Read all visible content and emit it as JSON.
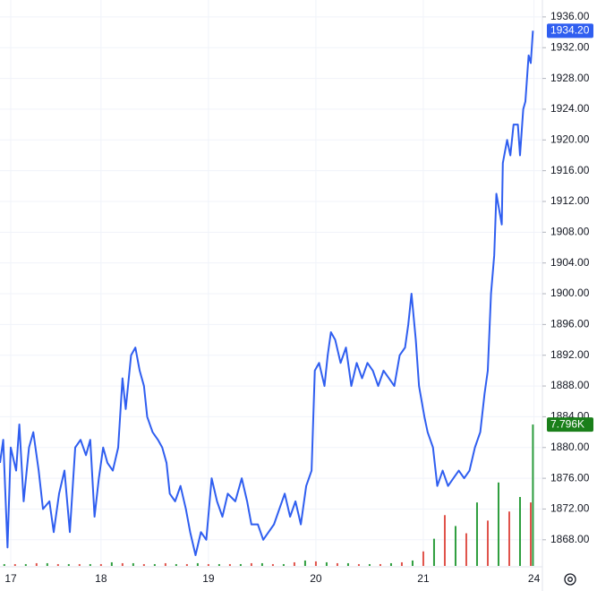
{
  "chart_data": {
    "type": "line",
    "xlim": [
      0.06,
      5.1
    ],
    "xticks": [
      {
        "value": 0.16,
        "label": "17"
      },
      {
        "value": 1,
        "label": "18"
      },
      {
        "value": 2,
        "label": "19"
      },
      {
        "value": 3,
        "label": "20"
      },
      {
        "value": 4,
        "label": "21"
      },
      {
        "value": 5.03,
        "label": "24"
      }
    ],
    "ylim": [
      1864.6,
      1938.2
    ],
    "yticks": [
      {
        "value": 1868,
        "label": "1868.00"
      },
      {
        "value": 1872,
        "label": "1872.00"
      },
      {
        "value": 1876,
        "label": "1876.00"
      },
      {
        "value": 1880,
        "label": "1880.00"
      },
      {
        "value": 1884,
        "label": "1884.00"
      },
      {
        "value": 1888,
        "label": "1888.00"
      },
      {
        "value": 1892,
        "label": "1892.00"
      },
      {
        "value": 1896,
        "label": "1896.00"
      },
      {
        "value": 1900,
        "label": "1900.00"
      },
      {
        "value": 1904,
        "label": "1904.00"
      },
      {
        "value": 1908,
        "label": "1908.00"
      },
      {
        "value": 1912,
        "label": "1912.00"
      },
      {
        "value": 1916,
        "label": "1916.00"
      },
      {
        "value": 1920,
        "label": "1920.00"
      },
      {
        "value": 1924,
        "label": "1924.00"
      },
      {
        "value": 1928,
        "label": "1928.00"
      },
      {
        "value": 1932,
        "label": "1932.00"
      },
      {
        "value": 1936,
        "label": "1936.00"
      }
    ],
    "y2lim": [
      0,
      31.2
    ],
    "grid": true,
    "series": [
      {
        "type": "line",
        "color": "#2f5ef0",
        "x": [
          0.06,
          0.09,
          0.13,
          0.16,
          0.21,
          0.24,
          0.28,
          0.33,
          0.37,
          0.42,
          0.46,
          0.52,
          0.56,
          0.61,
          0.66,
          0.71,
          0.76,
          0.81,
          0.86,
          0.9,
          0.94,
          0.98,
          1.02,
          1.06,
          1.11,
          1.16,
          1.2,
          1.23,
          1.28,
          1.32,
          1.36,
          1.4,
          1.43,
          1.48,
          1.53,
          1.57,
          1.61,
          1.64,
          1.69,
          1.74,
          1.79,
          1.83,
          1.88,
          1.93,
          1.98,
          2.03,
          2.08,
          2.13,
          2.18,
          2.25,
          2.31,
          2.36,
          2.4,
          2.46,
          2.51,
          2.56,
          2.61,
          2.66,
          2.71,
          2.76,
          2.81,
          2.86,
          2.91,
          2.96,
          2.99,
          3.03,
          3.08,
          3.11,
          3.14,
          3.18,
          3.23,
          3.28,
          3.33,
          3.38,
          3.43,
          3.48,
          3.53,
          3.58,
          3.63,
          3.68,
          3.73,
          3.78,
          3.83,
          3.86,
          3.89,
          3.93,
          3.96,
          4.01,
          4.04,
          4.09,
          4.13,
          4.18,
          4.23,
          4.28,
          4.33,
          4.38,
          4.43,
          4.48,
          4.53,
          4.57,
          4.6,
          4.63,
          4.66,
          4.68,
          4.73,
          4.74,
          4.78,
          4.81,
          4.84,
          4.88,
          4.9,
          4.93,
          4.95,
          4.98,
          5,
          5.02
        ],
        "values": [
          1878,
          1881,
          1867,
          1880,
          1877,
          1883,
          1873,
          1880,
          1882,
          1877,
          1872,
          1873,
          1869,
          1874,
          1877,
          1869,
          1880,
          1881,
          1879,
          1881,
          1871,
          1876,
          1880,
          1878,
          1877,
          1880,
          1889,
          1885,
          1892,
          1893,
          1890,
          1888,
          1884,
          1882,
          1881,
          1880,
          1878,
          1874,
          1873,
          1875,
          1872,
          1869,
          1866,
          1869,
          1868,
          1876,
          1873,
          1871,
          1874,
          1873,
          1876,
          1873,
          1870,
          1870,
          1868,
          1869,
          1870,
          1872,
          1874,
          1871,
          1873,
          1870,
          1875,
          1877,
          1890,
          1891,
          1888,
          1892,
          1895,
          1894,
          1891,
          1893,
          1888,
          1891,
          1889,
          1891,
          1890,
          1888,
          1890,
          1889,
          1888,
          1892,
          1893,
          1896,
          1900,
          1894,
          1888,
          1884,
          1882,
          1880,
          1875,
          1877,
          1875,
          1876,
          1877,
          1876,
          1877,
          1880,
          1882,
          1887,
          1890,
          1900,
          1905,
          1913,
          1909,
          1917,
          1920,
          1918,
          1922,
          1922,
          1918,
          1924,
          1925,
          1931,
          1930,
          1934.2
        ],
        "value_labels": [
          null,
          null,
          null,
          null,
          null,
          null,
          null,
          null,
          null,
          null,
          null,
          null,
          null,
          null,
          null,
          null,
          null,
          null,
          null,
          null,
          null,
          null,
          null,
          null,
          null,
          null,
          null,
          null,
          null,
          null,
          null,
          null,
          null,
          null,
          null,
          null,
          null,
          null,
          null,
          null,
          null,
          null,
          null,
          null,
          null,
          null,
          null,
          null,
          null,
          null,
          null,
          null,
          null,
          null,
          null,
          null,
          null,
          null,
          null,
          null,
          null,
          null,
          null,
          null,
          null,
          null,
          null,
          null,
          null,
          null,
          null,
          null,
          null,
          null,
          null,
          null,
          null,
          null,
          null,
          null,
          null,
          null,
          null,
          null,
          null,
          null,
          null,
          null,
          null,
          null,
          null,
          null,
          null,
          null,
          null,
          null,
          null,
          null,
          null,
          null,
          null,
          null,
          null,
          null,
          null,
          null,
          null,
          null,
          null,
          null,
          null,
          null,
          null,
          null,
          null,
          "1934.20"
        ]
      },
      {
        "type": "bar",
        "axis": "y2",
        "color": "#2e9e3e",
        "tag_color": "#1a7f1a",
        "x": [
          0.1,
          0.3,
          0.5,
          0.7,
          0.9,
          1.1,
          1.3,
          1.5,
          1.7,
          1.9,
          2.1,
          2.3,
          2.5,
          2.7,
          2.9,
          3.1,
          3.3,
          3.5,
          3.7,
          3.9,
          4.1,
          4.3,
          4.5,
          4.7,
          4.9,
          5.02
        ],
        "values": [
          0.1,
          0.1,
          0.15,
          0.1,
          0.1,
          0.2,
          0.15,
          0.1,
          0.1,
          0.15,
          0.1,
          0.1,
          0.15,
          0.1,
          0.3,
          0.2,
          0.15,
          0.1,
          0.15,
          0.3,
          1.5,
          2.2,
          3.5,
          4.6,
          3.8,
          7.796
        ],
        "value_labels": [
          null,
          null,
          null,
          null,
          null,
          null,
          null,
          null,
          null,
          null,
          null,
          null,
          null,
          null,
          null,
          null,
          null,
          null,
          null,
          null,
          null,
          null,
          null,
          null,
          null,
          "7.796K"
        ]
      },
      {
        "type": "bar",
        "axis": "y2",
        "color": "#e0524a",
        "x": [
          0.2,
          0.4,
          0.6,
          0.8,
          1.0,
          1.2,
          1.4,
          1.6,
          1.8,
          2.0,
          2.2,
          2.4,
          2.6,
          2.8,
          3.0,
          3.2,
          3.4,
          3.6,
          3.8,
          4.0,
          4.2,
          4.4,
          4.6,
          4.8,
          5.0
        ],
        "values": [
          0.1,
          0.15,
          0.1,
          0.1,
          0.1,
          0.15,
          0.1,
          0.15,
          0.1,
          0.1,
          0.1,
          0.15,
          0.1,
          0.2,
          0.25,
          0.15,
          0.1,
          0.1,
          0.2,
          0.8,
          2.8,
          1.8,
          2.5,
          3.0,
          3.5
        ]
      }
    ]
  }
}
